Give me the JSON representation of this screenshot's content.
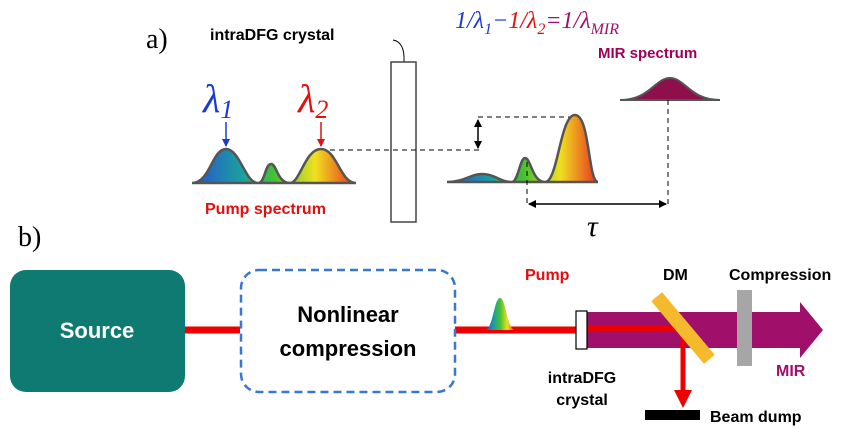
{
  "panel_a": {
    "label": "a)",
    "crystal_label": "intraDFG crystal",
    "equation": {
      "term1": "1/λ",
      "sub1": "1",
      "minus": "−",
      "term2": "1/λ",
      "sub2": "2",
      "equals": "=1/λ",
      "sub3": "MIR"
    },
    "lambda1": {
      "symbol": "λ",
      "sub": "1"
    },
    "lambda2": {
      "symbol": "λ",
      "sub": "2"
    },
    "pump_spectrum": "Pump spectrum",
    "mir_spectrum": "MIR spectrum",
    "delay": "τ"
  },
  "panel_b": {
    "label": "b)",
    "source": "Source",
    "nonlinear": [
      "Nonlinear",
      "compression"
    ],
    "pump": "Pump",
    "dm": "DM",
    "compression": "Compression",
    "mir": "MIR",
    "crystal": [
      "intraDFG",
      "crystal"
    ],
    "beam_dump": "Beam dump"
  }
}
